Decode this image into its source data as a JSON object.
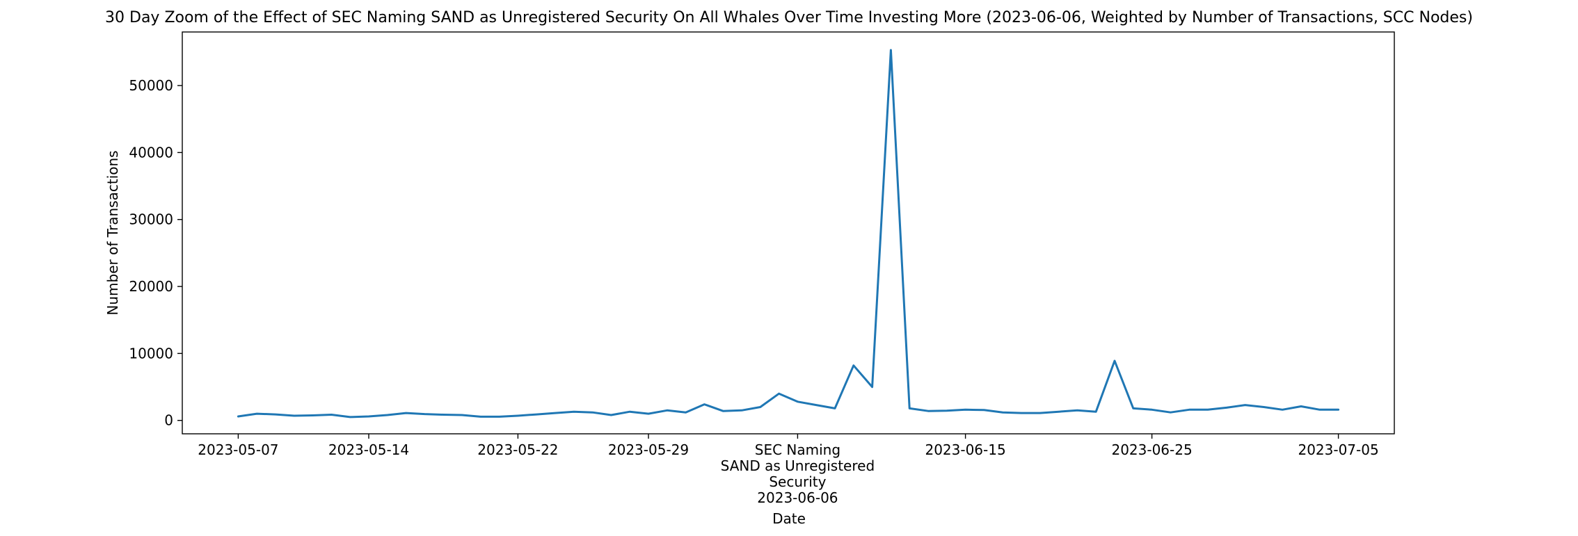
{
  "chart_data": {
    "type": "line",
    "title": "30 Day Zoom of the Effect of SEC Naming SAND as Unregistered Security On All Whales Over Time Investing More (2023-06-06, Weighted by Number of Transactions, SCC Nodes)",
    "xlabel": "Date",
    "ylabel": "Number of Transactions",
    "xlim": [
      "2023-05-04",
      "2023-07-08"
    ],
    "ylim": [
      -2000,
      58000
    ],
    "grid": false,
    "color": "#1f77b4",
    "x_ticks": [
      {
        "date": "2023-05-07",
        "label": "2023-05-07"
      },
      {
        "date": "2023-05-14",
        "label": "2023-05-14"
      },
      {
        "date": "2023-05-22",
        "label": "2023-05-22"
      },
      {
        "date": "2023-05-29",
        "label": "2023-05-29"
      },
      {
        "date": "2023-06-06",
        "label": "SEC Naming\nSAND as Unregistered\nSecurity\n2023-06-06"
      },
      {
        "date": "2023-06-15",
        "label": "2023-06-15"
      },
      {
        "date": "2023-06-25",
        "label": "2023-06-25"
      },
      {
        "date": "2023-07-05",
        "label": "2023-07-05"
      }
    ],
    "y_ticks": [
      0,
      10000,
      20000,
      30000,
      40000,
      50000
    ],
    "x": [
      "2023-05-07",
      "2023-05-08",
      "2023-05-09",
      "2023-05-10",
      "2023-05-11",
      "2023-05-12",
      "2023-05-13",
      "2023-05-14",
      "2023-05-15",
      "2023-05-16",
      "2023-05-17",
      "2023-05-18",
      "2023-05-19",
      "2023-05-20",
      "2023-05-21",
      "2023-05-22",
      "2023-05-23",
      "2023-05-24",
      "2023-05-25",
      "2023-05-26",
      "2023-05-27",
      "2023-05-28",
      "2023-05-29",
      "2023-05-30",
      "2023-05-31",
      "2023-06-01",
      "2023-06-02",
      "2023-06-03",
      "2023-06-04",
      "2023-06-05",
      "2023-06-06",
      "2023-06-07",
      "2023-06-08",
      "2023-06-09",
      "2023-06-10",
      "2023-06-11",
      "2023-06-12",
      "2023-06-13",
      "2023-06-14",
      "2023-06-15",
      "2023-06-16",
      "2023-06-17",
      "2023-06-18",
      "2023-06-19",
      "2023-06-20",
      "2023-06-21",
      "2023-06-22",
      "2023-06-23",
      "2023-06-24",
      "2023-06-25",
      "2023-06-26",
      "2023-06-27",
      "2023-06-28",
      "2023-06-29",
      "2023-06-30",
      "2023-07-01",
      "2023-07-02",
      "2023-07-03",
      "2023-07-04",
      "2023-07-05"
    ],
    "values": [
      600,
      1000,
      900,
      700,
      750,
      850,
      500,
      600,
      800,
      1100,
      950,
      850,
      800,
      550,
      550,
      700,
      900,
      1100,
      1300,
      1200,
      800,
      1300,
      1000,
      1500,
      1200,
      2400,
      1400,
      1500,
      2000,
      4000,
      2800,
      2300,
      1800,
      8200,
      5000,
      55300,
      1800,
      1400,
      1450,
      1600,
      1550,
      1200,
      1100,
      1100,
      1300,
      1500,
      1300,
      8900,
      1800,
      1600,
      1200,
      1600,
      1600,
      1900,
      2300,
      2000,
      1600,
      2100,
      1600,
      1600
    ]
  }
}
